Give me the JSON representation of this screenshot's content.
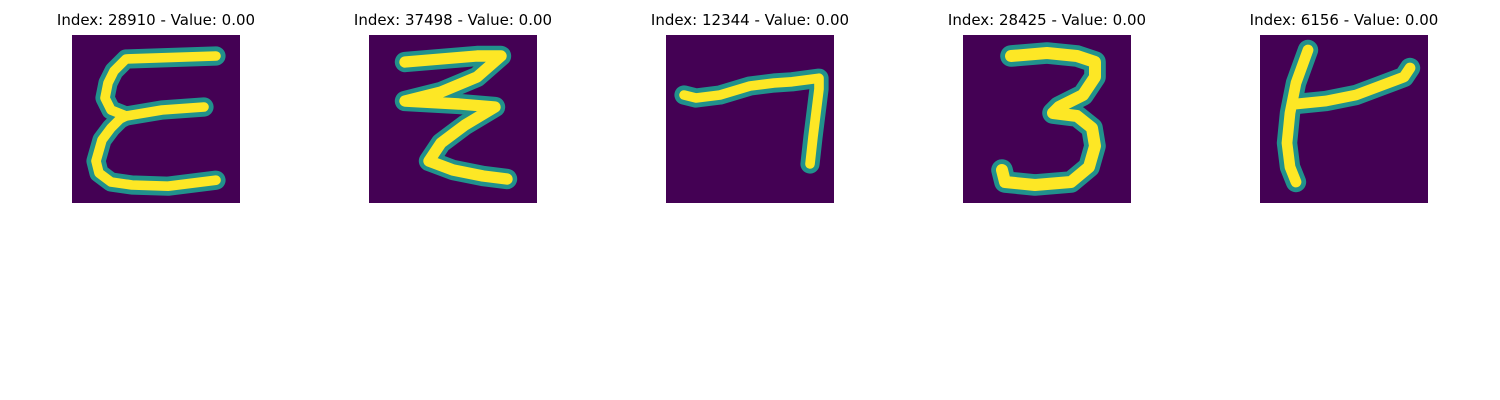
{
  "colors": {
    "background": "#440154",
    "low": "#3b528b",
    "mid": "#21918c",
    "high": "#5ec962",
    "peak": "#fde725"
  },
  "panels": [
    {
      "title": "Index: 28910 - Value: 0.00",
      "glyph": "E"
    },
    {
      "title": "Index: 37498 - Value: 0.00",
      "glyph": "Z-double"
    },
    {
      "title": "Index: 12344 - Value: 0.00",
      "glyph": "7"
    },
    {
      "title": "Index: 28425 - Value: 0.00",
      "glyph": "3"
    },
    {
      "title": "Index: 6156 - Value: 0.00",
      "glyph": "K"
    }
  ]
}
